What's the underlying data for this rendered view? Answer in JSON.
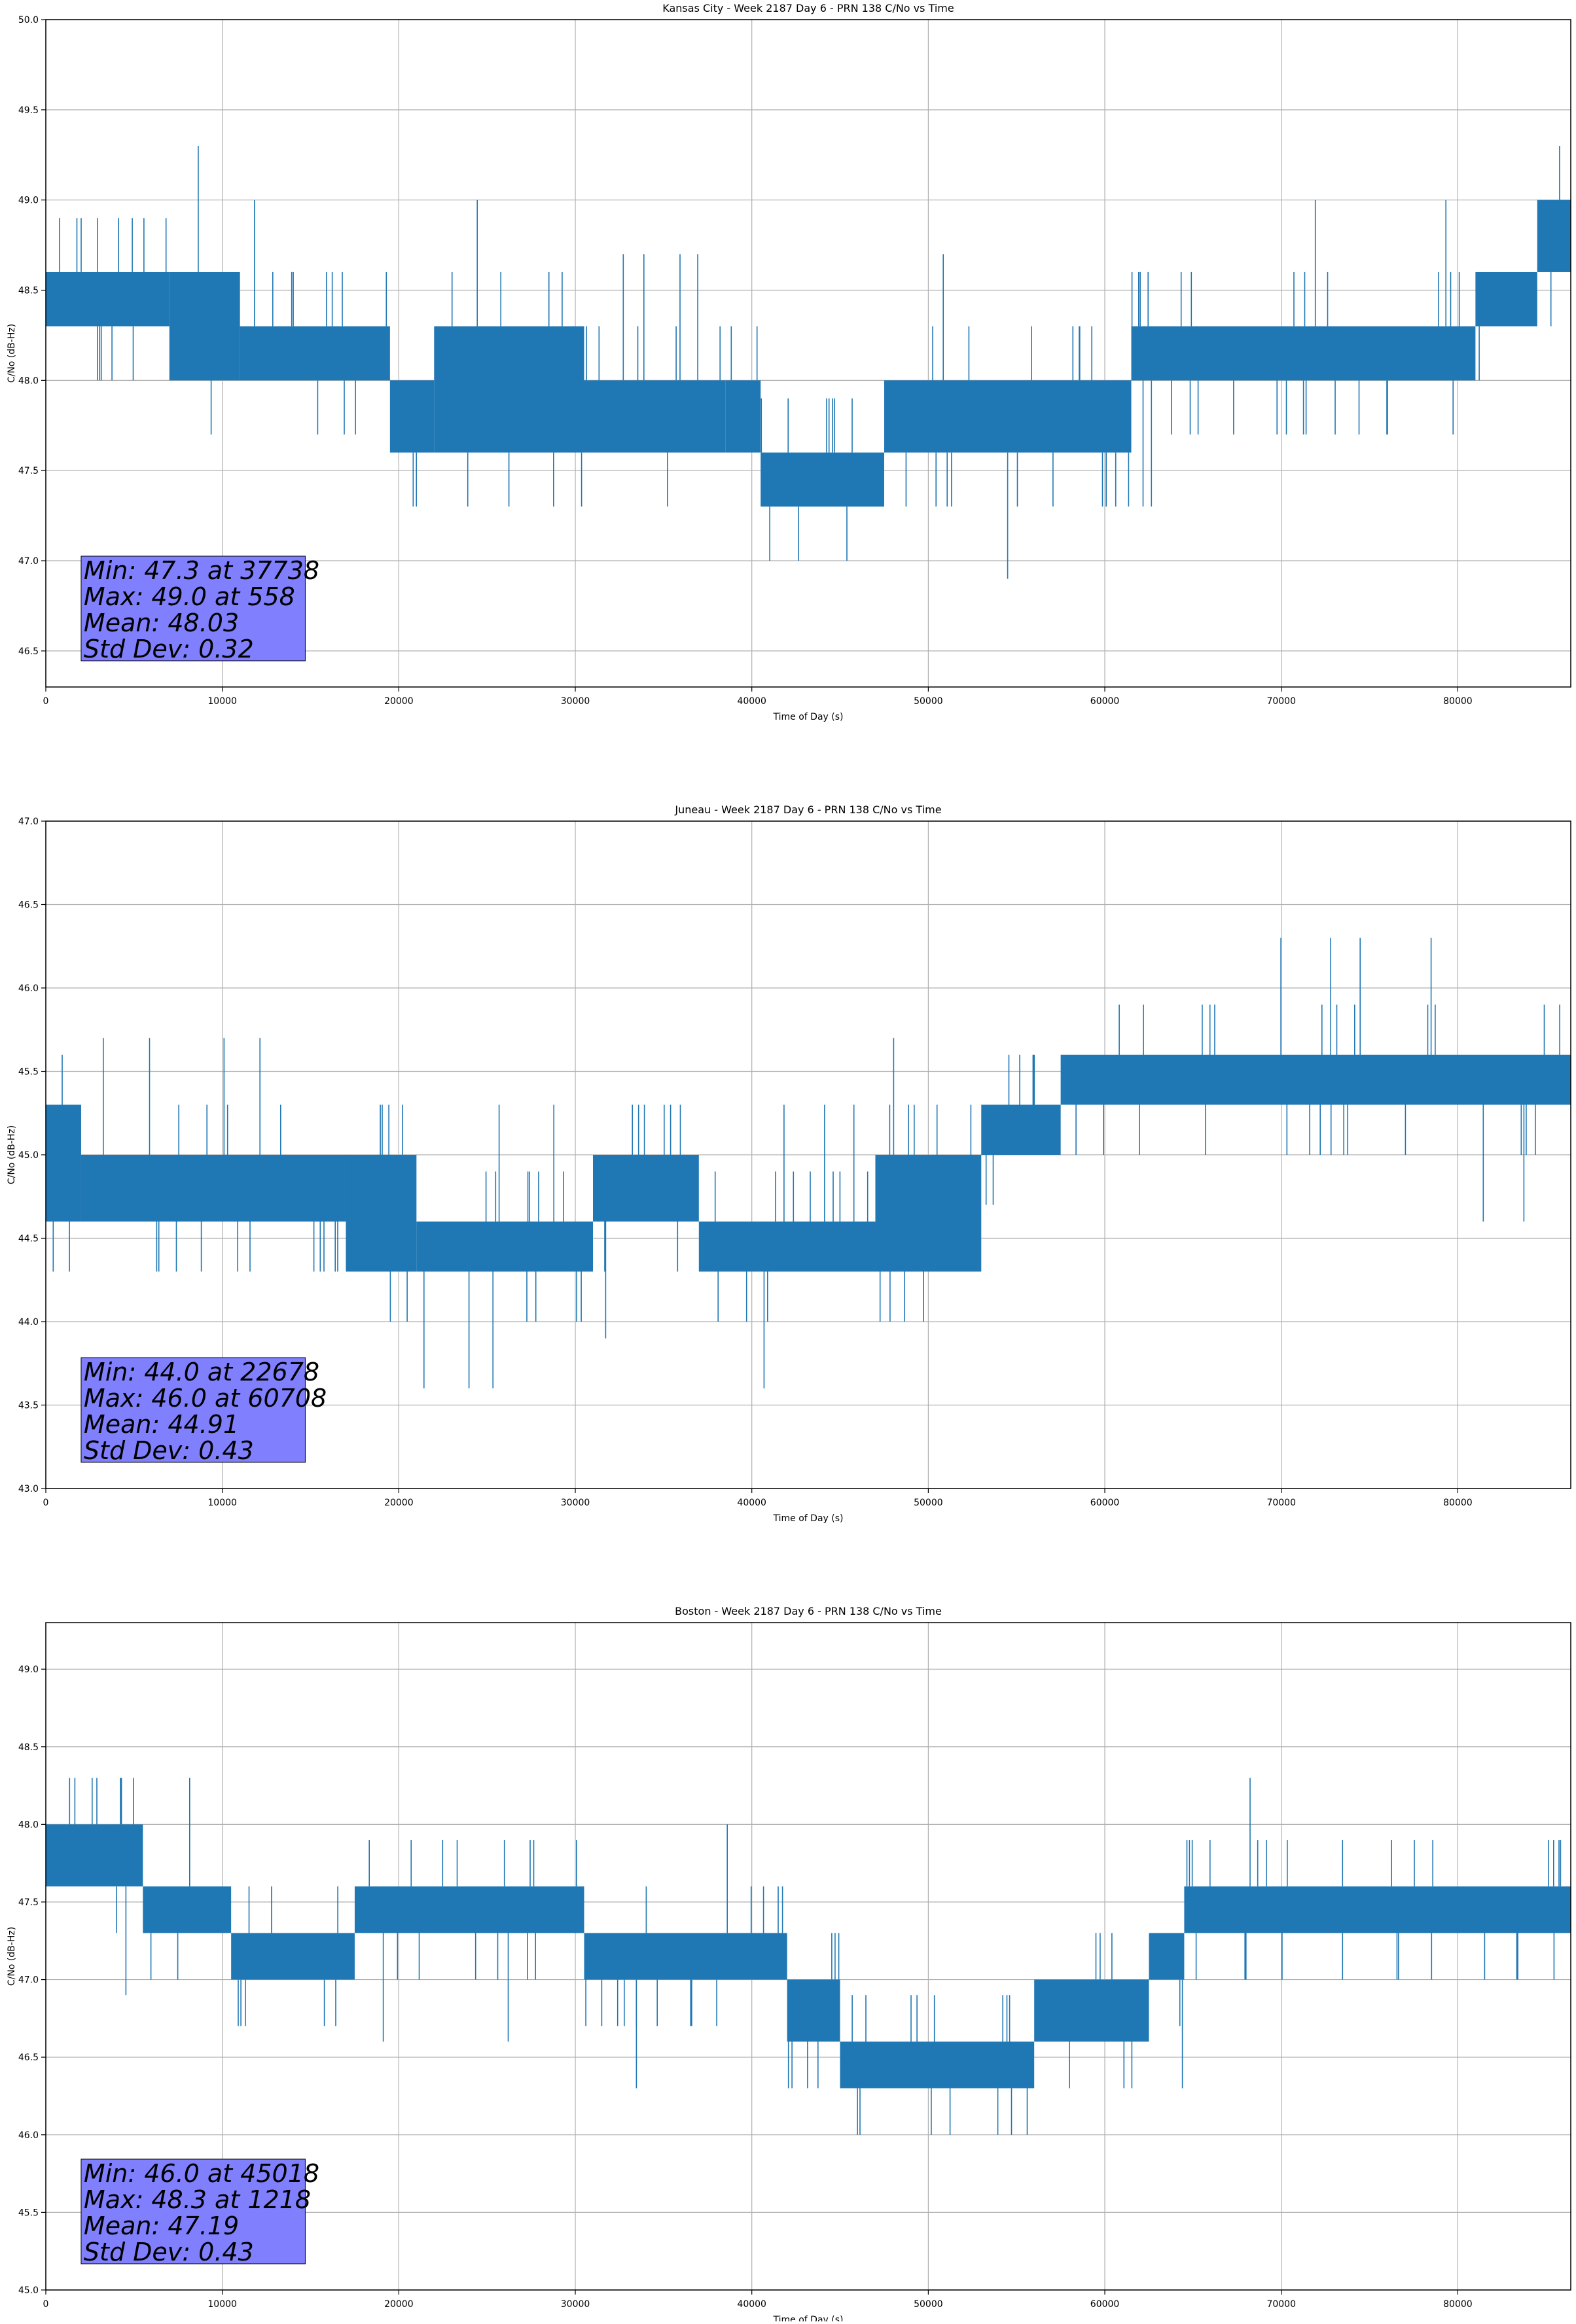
{
  "chart_data": [
    {
      "type": "line",
      "title": "Kansas City - Week 2187 Day 6 - PRN 138 C/No vs Time",
      "xlabel": "Time of Day (s)",
      "ylabel": "C/No (dB-Hz)",
      "xlim": [
        0,
        86400
      ],
      "ylim": [
        46.3,
        50.0
      ],
      "xticks": [
        0,
        10000,
        20000,
        30000,
        40000,
        50000,
        60000,
        70000,
        80000
      ],
      "yticks": [
        46.5,
        47.0,
        47.5,
        48.0,
        48.5,
        49.0,
        49.5,
        50.0
      ],
      "ytick_labels": [
        "46.5",
        "47.0",
        "47.5",
        "48.0",
        "48.5",
        "49.0",
        "49.5",
        "50.0"
      ],
      "grid": true,
      "series_color": "#1f77b4",
      "bands": [
        {
          "x0": 0,
          "x1": 7000,
          "lo": 48.3,
          "hi": 48.6
        },
        {
          "x0": 7000,
          "x1": 11000,
          "lo": 48.0,
          "hi": 48.6
        },
        {
          "x0": 11000,
          "x1": 19500,
          "lo": 48.0,
          "hi": 48.3
        },
        {
          "x0": 19500,
          "x1": 22000,
          "lo": 47.6,
          "hi": 48.0
        },
        {
          "x0": 22000,
          "x1": 30500,
          "lo": 47.6,
          "hi": 48.3
        },
        {
          "x0": 30500,
          "x1": 38500,
          "lo": 47.6,
          "hi": 48.0
        },
        {
          "x0": 38500,
          "x1": 40500,
          "lo": 47.6,
          "hi": 48.0
        },
        {
          "x0": 40500,
          "x1": 47500,
          "lo": 47.3,
          "hi": 47.6
        },
        {
          "x0": 47500,
          "x1": 61500,
          "lo": 47.6,
          "hi": 48.0
        },
        {
          "x0": 61500,
          "x1": 81000,
          "lo": 48.0,
          "hi": 48.3
        },
        {
          "x0": 81000,
          "x1": 84500,
          "lo": 48.3,
          "hi": 48.6
        },
        {
          "x0": 84500,
          "x1": 86400,
          "lo": 48.6,
          "hi": 49.0
        }
      ],
      "stats": [
        "Min: 47.3 at 37738",
        "Max: 49.0 at 558",
        "Mean: 48.03",
        "Std Dev: 0.32"
      ]
    },
    {
      "type": "line",
      "title": "Juneau - Week 2187 Day 6 - PRN 138 C/No vs Time",
      "xlabel": "Time of Day (s)",
      "ylabel": "C/No (dB-Hz)",
      "xlim": [
        0,
        86400
      ],
      "ylim": [
        43.0,
        47.0
      ],
      "xticks": [
        0,
        10000,
        20000,
        30000,
        40000,
        50000,
        60000,
        70000,
        80000
      ],
      "yticks": [
        43.0,
        43.5,
        44.0,
        44.5,
        45.0,
        45.5,
        46.0,
        46.5,
        47.0
      ],
      "ytick_labels": [
        "43.0",
        "43.5",
        "44.0",
        "44.5",
        "45.0",
        "45.5",
        "46.0",
        "46.5",
        "47.0"
      ],
      "grid": true,
      "series_color": "#1f77b4",
      "bands": [
        {
          "x0": 0,
          "x1": 2000,
          "lo": 44.6,
          "hi": 45.3
        },
        {
          "x0": 2000,
          "x1": 17000,
          "lo": 44.6,
          "hi": 45.0
        },
        {
          "x0": 17000,
          "x1": 21000,
          "lo": 44.3,
          "hi": 45.0
        },
        {
          "x0": 21000,
          "x1": 31000,
          "lo": 44.3,
          "hi": 44.6
        },
        {
          "x0": 31000,
          "x1": 37000,
          "lo": 44.6,
          "hi": 45.0
        },
        {
          "x0": 37000,
          "x1": 47000,
          "lo": 44.3,
          "hi": 44.6
        },
        {
          "x0": 47000,
          "x1": 53000,
          "lo": 44.3,
          "hi": 45.0
        },
        {
          "x0": 53000,
          "x1": 57500,
          "lo": 45.0,
          "hi": 45.3
        },
        {
          "x0": 57500,
          "x1": 86400,
          "lo": 45.3,
          "hi": 45.6
        }
      ],
      "stats": [
        "Min: 44.0 at 22678",
        "Max: 46.0 at 60708",
        "Mean: 44.91",
        "Std Dev: 0.43"
      ]
    },
    {
      "type": "line",
      "title": "Boston - Week 2187 Day 6 - PRN 138 C/No vs Time",
      "xlabel": "Time of Day (s)",
      "ylabel": "C/No (dB-Hz)",
      "xlim": [
        0,
        86400
      ],
      "ylim": [
        45.0,
        49.3
      ],
      "xticks": [
        0,
        10000,
        20000,
        30000,
        40000,
        50000,
        60000,
        70000,
        80000
      ],
      "yticks": [
        45.0,
        45.5,
        46.0,
        46.5,
        47.0,
        47.5,
        48.0,
        48.5,
        49.0
      ],
      "ytick_labels": [
        "45.0",
        "45.5",
        "46.0",
        "46.5",
        "47.0",
        "47.5",
        "48.0",
        "48.5",
        "49.0"
      ],
      "grid": true,
      "series_color": "#1f77b4",
      "bands": [
        {
          "x0": 0,
          "x1": 5500,
          "lo": 47.6,
          "hi": 48.0
        },
        {
          "x0": 5500,
          "x1": 10500,
          "lo": 47.3,
          "hi": 47.6
        },
        {
          "x0": 10500,
          "x1": 17500,
          "lo": 47.0,
          "hi": 47.3
        },
        {
          "x0": 17500,
          "x1": 30500,
          "lo": 47.3,
          "hi": 47.6
        },
        {
          "x0": 30500,
          "x1": 42000,
          "lo": 47.0,
          "hi": 47.3
        },
        {
          "x0": 42000,
          "x1": 45000,
          "lo": 46.6,
          "hi": 47.0
        },
        {
          "x0": 45000,
          "x1": 56000,
          "lo": 46.3,
          "hi": 46.6
        },
        {
          "x0": 56000,
          "x1": 62500,
          "lo": 46.6,
          "hi": 47.0
        },
        {
          "x0": 62500,
          "x1": 64500,
          "lo": 47.0,
          "hi": 47.3
        },
        {
          "x0": 64500,
          "x1": 86400,
          "lo": 47.3,
          "hi": 47.6
        }
      ],
      "stats": [
        "Min: 46.0 at 45018",
        "Max: 48.3 at 1218",
        "Mean: 47.19",
        "Std Dev: 0.43"
      ]
    }
  ]
}
